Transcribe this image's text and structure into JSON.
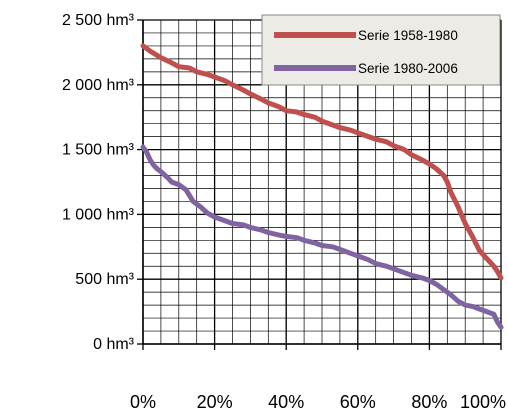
{
  "chart_data": {
    "type": "line",
    "title": "",
    "xlabel": "",
    "ylabel": "",
    "xlim": [
      0,
      100
    ],
    "ylim": [
      0,
      2500
    ],
    "x_ticks": [
      0,
      20,
      40,
      60,
      80,
      100
    ],
    "x_tick_labels": [
      "0%",
      "20%",
      "40%",
      "60%",
      "80%",
      "100%"
    ],
    "y_ticks": [
      0,
      500,
      1000,
      1500,
      2000,
      2500
    ],
    "y_tick_labels": [
      "0 hm³",
      "500 hm³",
      "1 000 hm³",
      "1 500 hm³",
      "2 000 hm³",
      "2 500 hm³"
    ],
    "grid": true,
    "grid_minor_x_step": 5,
    "grid_minor_y_step": 100,
    "legend_position": "top-right",
    "series": [
      {
        "name": "Serie 1958-1980",
        "color": "#c0504d",
        "x": [
          0,
          2,
          5,
          8,
          10,
          13,
          15,
          18,
          20,
          23,
          25,
          28,
          30,
          33,
          35,
          38,
          40,
          43,
          45,
          48,
          50,
          53,
          55,
          58,
          60,
          63,
          65,
          68,
          70,
          73,
          75,
          78,
          80,
          82,
          84,
          85,
          86,
          88,
          90,
          92,
          94,
          96,
          98,
          99,
          100
        ],
        "y": [
          2300,
          2260,
          2210,
          2170,
          2140,
          2130,
          2100,
          2080,
          2060,
          2030,
          2000,
          1960,
          1930,
          1890,
          1860,
          1830,
          1800,
          1790,
          1770,
          1750,
          1720,
          1690,
          1670,
          1650,
          1630,
          1600,
          1580,
          1560,
          1530,
          1500,
          1460,
          1420,
          1390,
          1350,
          1300,
          1250,
          1170,
          1060,
          930,
          830,
          720,
          660,
          600,
          560,
          510
        ]
      },
      {
        "name": "Serie 1980-2006",
        "color": "#8064a2",
        "x": [
          0,
          1,
          2,
          3,
          4,
          5,
          7,
          8,
          10,
          12,
          14,
          16,
          18,
          20,
          23,
          25,
          28,
          30,
          33,
          35,
          38,
          40,
          43,
          45,
          48,
          50,
          53,
          55,
          58,
          60,
          63,
          65,
          68,
          70,
          73,
          75,
          78,
          80,
          82,
          84,
          86,
          88,
          90,
          92,
          94,
          96,
          98,
          99,
          100
        ],
        "y": [
          1520,
          1480,
          1420,
          1380,
          1350,
          1330,
          1280,
          1250,
          1230,
          1190,
          1100,
          1060,
          1010,
          980,
          950,
          930,
          920,
          900,
          880,
          860,
          840,
          830,
          820,
          800,
          780,
          760,
          750,
          730,
          700,
          680,
          650,
          620,
          600,
          580,
          550,
          530,
          510,
          490,
          460,
          420,
          380,
          330,
          300,
          290,
          270,
          250,
          230,
          170,
          130
        ]
      }
    ]
  }
}
